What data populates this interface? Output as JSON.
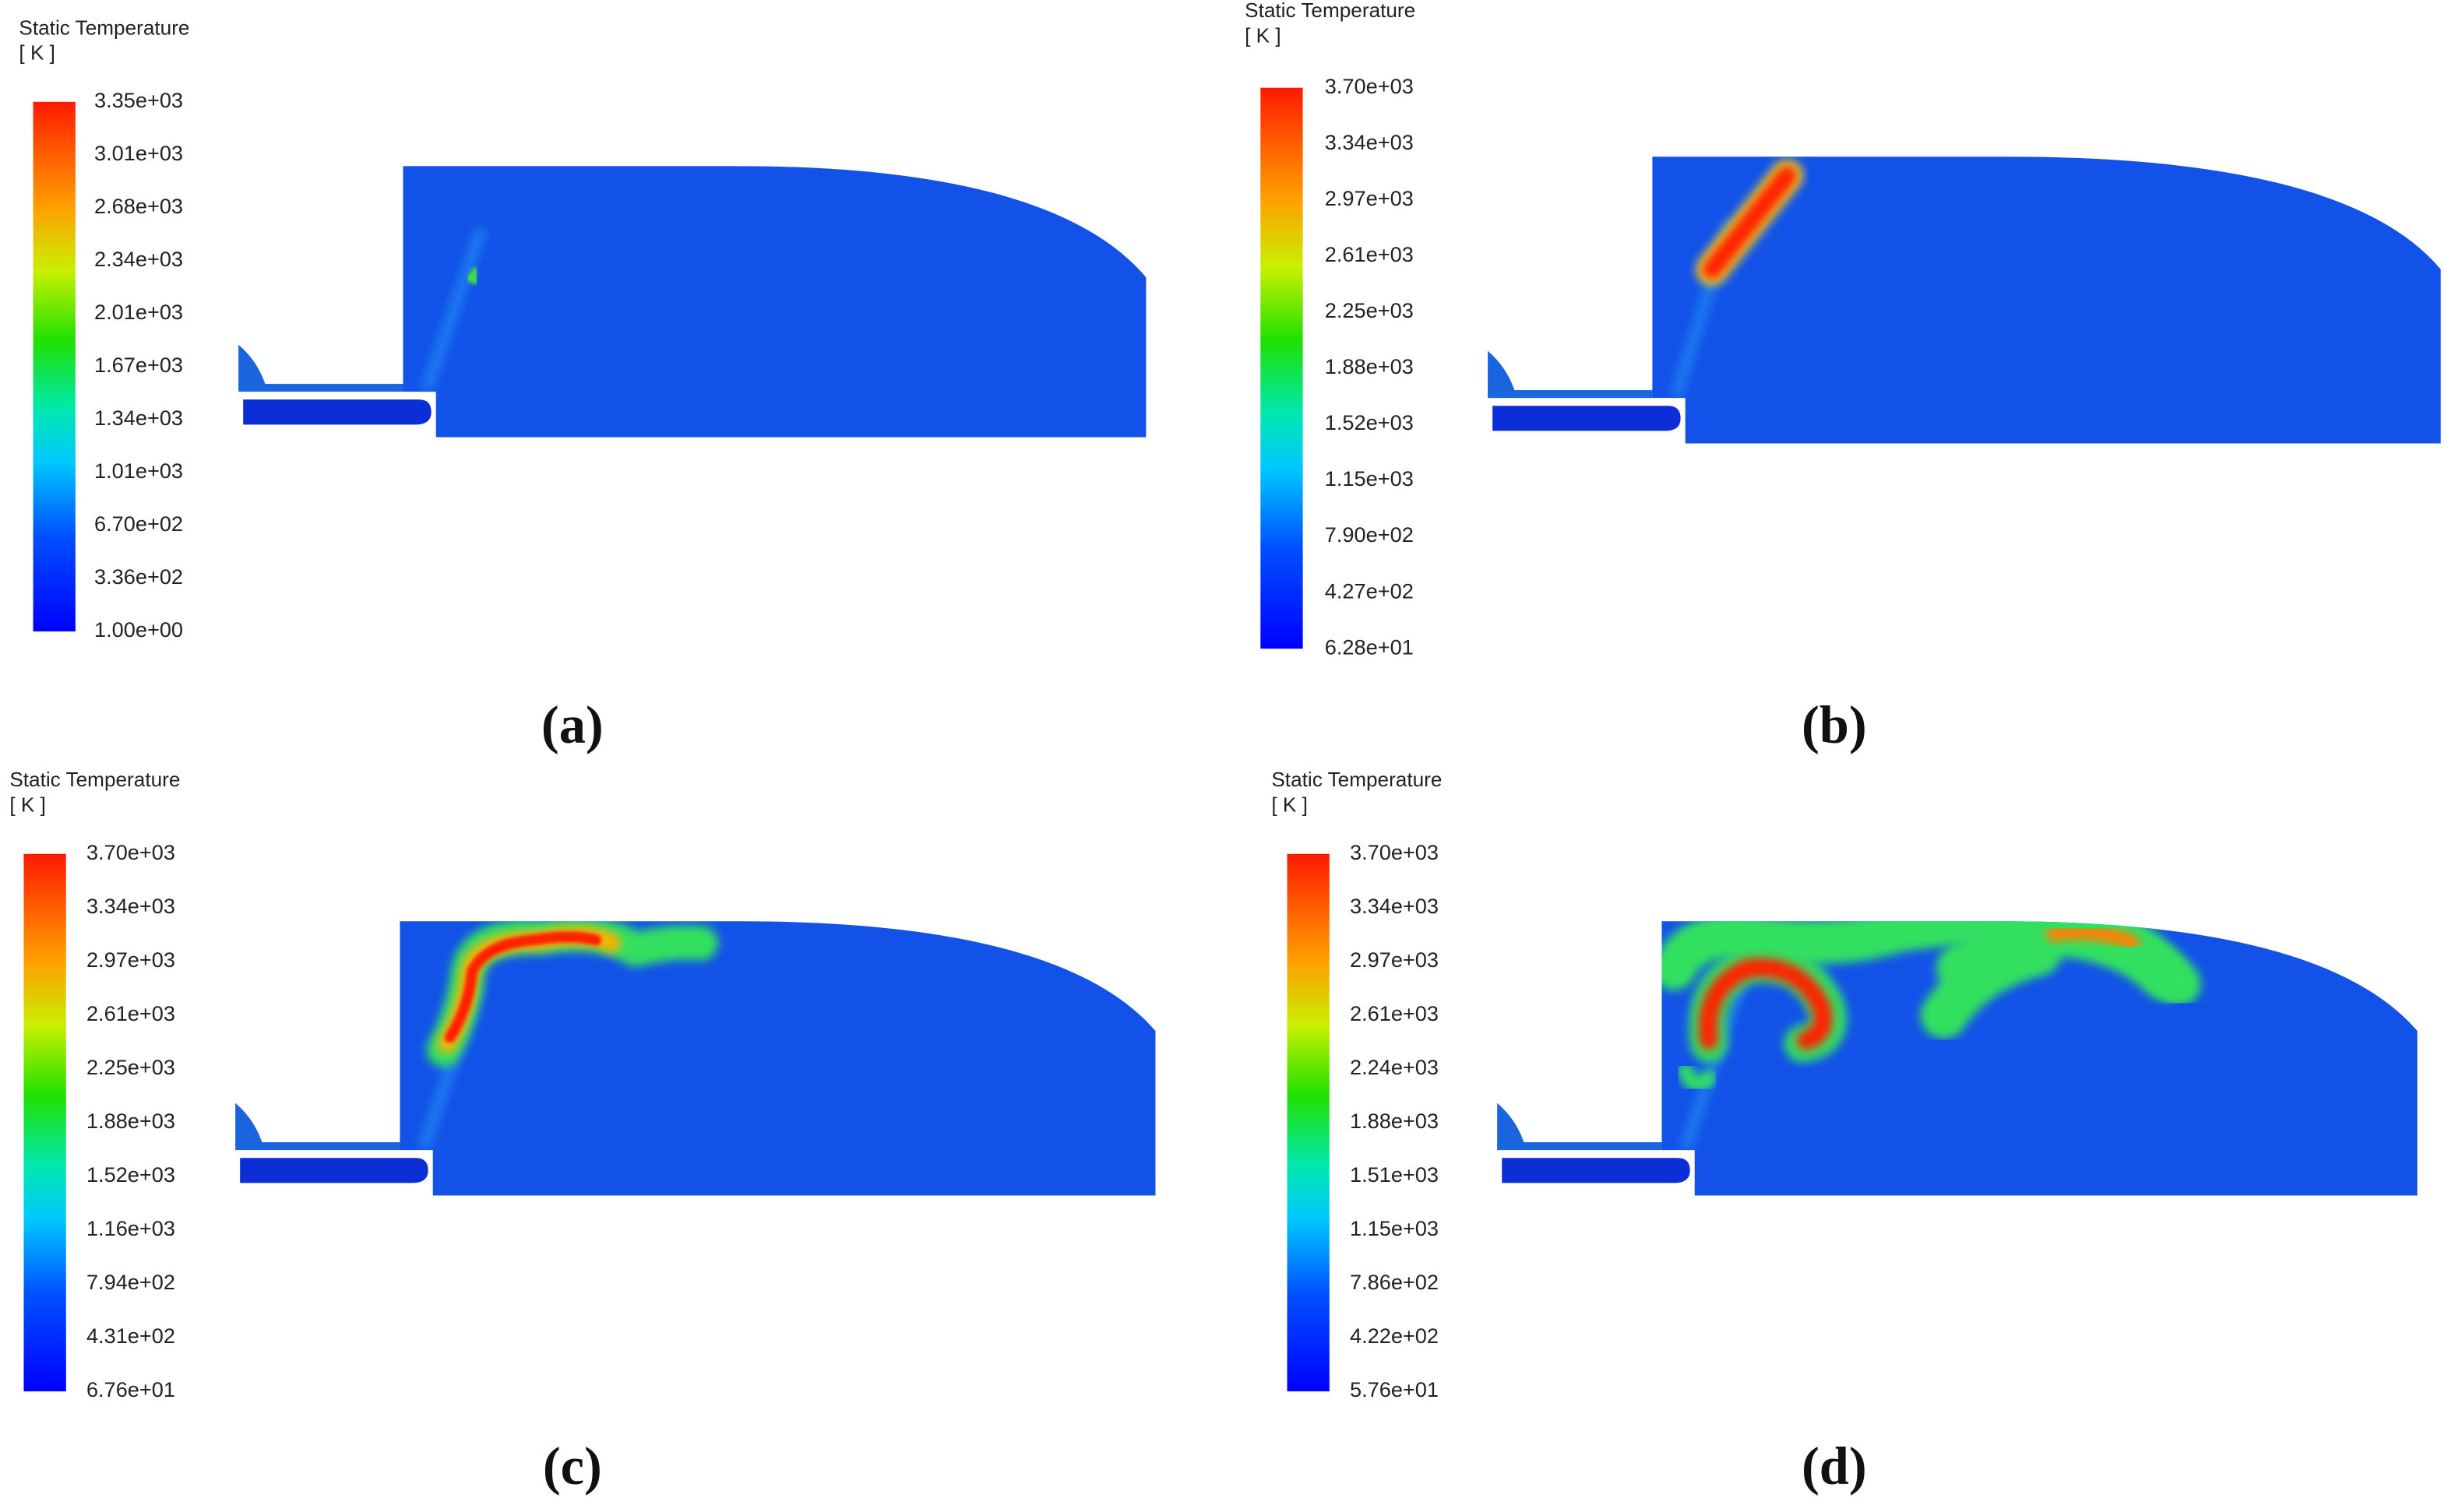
{
  "panels": [
    {
      "legend_title": "Static Temperature",
      "legend_unit": "[ K ]",
      "ticks": [
        "3.35e+03",
        "3.01e+03",
        "2.68e+03",
        "2.34e+03",
        "2.01e+03",
        "1.67e+03",
        "1.34e+03",
        "1.01e+03",
        "6.70e+02",
        "3.36e+02",
        "1.00e+00"
      ],
      "caption": "(a)"
    },
    {
      "legend_title": "Static Temperature",
      "legend_unit": "[ K ]",
      "ticks": [
        "3.70e+03",
        "3.34e+03",
        "2.97e+03",
        "2.61e+03",
        "2.25e+03",
        "1.88e+03",
        "1.52e+03",
        "1.15e+03",
        "7.90e+02",
        "4.27e+02",
        "6.28e+01"
      ],
      "caption": "(b)"
    },
    {
      "legend_title": "Static Temperature",
      "legend_unit": "[ K ]",
      "ticks": [
        "3.70e+03",
        "3.34e+03",
        "2.97e+03",
        "2.61e+03",
        "2.25e+03",
        "1.88e+03",
        "1.52e+03",
        "1.16e+03",
        "7.94e+02",
        "4.31e+02",
        "6.76e+01"
      ],
      "caption": "(c)"
    },
    {
      "legend_title": "Static Temperature",
      "legend_unit": "[ K ]",
      "ticks": [
        "3.70e+03",
        "3.34e+03",
        "2.97e+03",
        "2.61e+03",
        "2.24e+03",
        "1.88e+03",
        "1.51e+03",
        "1.15e+03",
        "7.86e+02",
        "4.22e+02",
        "5.76e+01"
      ],
      "caption": "(d)"
    }
  ]
}
